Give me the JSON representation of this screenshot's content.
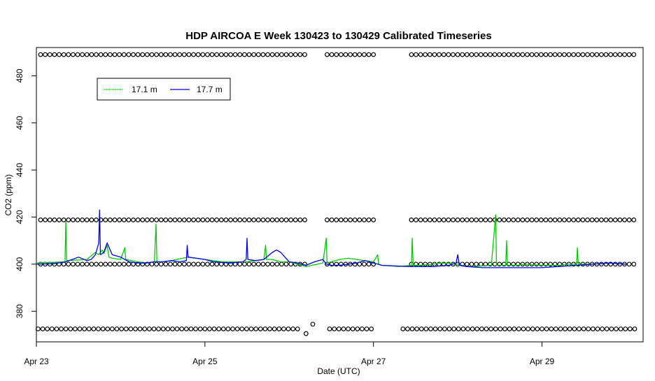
{
  "chart_data": {
    "type": "line",
    "title": "HDP AIRCOA E  Week 130423 to 130429  Calibrated Timeseries",
    "xlabel": "Date (UTC)",
    "ylabel": "CO2 (ppm)",
    "x_unit": "days (April 2013)",
    "xlim": [
      23.0,
      30.2
    ],
    "ylim": [
      367.0,
      492.0
    ],
    "x_ticks": [
      {
        "value": 23,
        "label": "Apr 23"
      },
      {
        "value": 25,
        "label": "Apr 25"
      },
      {
        "value": 27,
        "label": "Apr 27"
      },
      {
        "value": 29,
        "label": "Apr 29"
      }
    ],
    "y_ticks": [
      {
        "value": 380,
        "label": "380"
      },
      {
        "value": 400,
        "label": "400"
      },
      {
        "value": 420,
        "label": "420"
      },
      {
        "value": 440,
        "label": "440"
      },
      {
        "value": 460,
        "label": "460"
      },
      {
        "value": 480,
        "label": "480"
      }
    ],
    "legend": {
      "position": "top-left",
      "entries": [
        {
          "label": "17.1 m",
          "color": "#00cc00"
        },
        {
          "label": "17.7 m",
          "color": "#0000ee"
        }
      ]
    },
    "series": [
      {
        "name": "17.1 m",
        "color": "#00cc00",
        "x": [
          23.0,
          23.34,
          23.35,
          23.36,
          23.6,
          23.7,
          23.74,
          23.78,
          23.8,
          23.84,
          23.86,
          23.9,
          24.0,
          24.05,
          24.06,
          24.2,
          24.3,
          24.4,
          24.42,
          24.43,
          24.5,
          24.6,
          24.8,
          25.0,
          25.2,
          25.5,
          25.6,
          25.7,
          25.72,
          25.73,
          25.8,
          25.9,
          26.0,
          26.2,
          26.4,
          26.44,
          26.45,
          26.5,
          26.6,
          26.7,
          26.8,
          27.0,
          27.05,
          27.06,
          27.1,
          27.3,
          27.45,
          27.46,
          27.47,
          27.55,
          27.7,
          27.8,
          28.0,
          28.1,
          28.2,
          28.4,
          28.45,
          28.46,
          28.47,
          28.5,
          28.57,
          28.58,
          28.59,
          28.7,
          28.8,
          29.0,
          29.2,
          29.3,
          29.41,
          29.42,
          29.43,
          29.6,
          29.8,
          30.0
        ],
        "y": [
          400.5,
          401.0,
          418.0,
          401.5,
          402.0,
          405.0,
          404.0,
          406.0,
          404.5,
          408.0,
          403.0,
          402.5,
          402.0,
          407.0,
          402.0,
          401.0,
          400.5,
          401.0,
          417.0,
          401.0,
          401.0,
          401.5,
          403.0,
          402.0,
          401.0,
          401.0,
          401.5,
          402.0,
          408.0,
          402.0,
          402.0,
          401.0,
          401.0,
          399.0,
          400.5,
          411.0,
          400.5,
          401.0,
          402.0,
          402.5,
          402.0,
          401.0,
          404.0,
          400.0,
          399.5,
          399.0,
          399.5,
          411.0,
          399.5,
          399.5,
          400.0,
          400.5,
          400.0,
          399.0,
          399.0,
          399.5,
          421.0,
          399.5,
          399.5,
          399.5,
          399.5,
          410.0,
          399.5,
          399.5,
          400.0,
          399.5,
          399.5,
          400.0,
          400.0,
          407.0,
          400.0,
          400.0,
          400.5,
          400.0
        ]
      },
      {
        "name": "17.7 m",
        "color": "#0000ee",
        "x": [
          23.0,
          23.2,
          23.35,
          23.5,
          23.6,
          23.65,
          23.7,
          23.74,
          23.75,
          23.76,
          23.8,
          23.84,
          23.9,
          24.0,
          24.1,
          24.2,
          24.3,
          24.4,
          24.5,
          24.6,
          24.7,
          24.78,
          24.79,
          24.8,
          24.9,
          25.0,
          25.1,
          25.3,
          25.45,
          25.49,
          25.5,
          25.51,
          25.6,
          25.7,
          25.8,
          25.85,
          25.9,
          25.95,
          26.0,
          26.1,
          26.2,
          26.3,
          26.4,
          26.44,
          26.5,
          26.6,
          26.8,
          26.9,
          27.0,
          27.1,
          27.4,
          27.7,
          27.9,
          27.98,
          28.0,
          28.02,
          28.1,
          28.3,
          28.5,
          28.7,
          28.8,
          29.0,
          29.2,
          29.4,
          29.6,
          29.8,
          30.0
        ],
        "y": [
          400.0,
          400.2,
          401.0,
          403.0,
          401.5,
          402.0,
          404.0,
          409.0,
          423.0,
          404.0,
          405.0,
          409.0,
          404.0,
          403.0,
          401.0,
          400.5,
          400.5,
          401.0,
          401.0,
          401.5,
          401.0,
          401.5,
          408.0,
          403.0,
          402.5,
          402.0,
          401.0,
          400.5,
          401.0,
          402.0,
          411.0,
          402.0,
          401.5,
          402.0,
          405.0,
          406.0,
          405.0,
          403.0,
          401.0,
          400.5,
          399.5,
          401.0,
          402.0,
          400.0,
          399.5,
          399.5,
          400.5,
          401.5,
          400.5,
          399.5,
          399.0,
          399.0,
          399.5,
          400.5,
          404.0,
          399.5,
          399.0,
          398.5,
          398.5,
          398.5,
          398.5,
          398.5,
          399.0,
          399.5,
          400.0,
          400.5,
          400.0
        ]
      }
    ],
    "calibration_points": {
      "marker": "open circle",
      "groups": [
        {
          "y": 489.0,
          "x_ranges": [
            [
              23.05,
              26.2
            ],
            [
              26.45,
              27.0
            ],
            [
              27.45,
              30.1
            ]
          ]
        },
        {
          "y": 418.8,
          "x_ranges": [
            [
              23.05,
              26.2
            ],
            [
              26.45,
              27.0
            ],
            [
              27.45,
              30.1
            ]
          ]
        },
        {
          "y": 400.0,
          "x_ranges": [
            [
              23.05,
              26.2
            ],
            [
              26.45,
              27.0
            ],
            [
              27.45,
              30.1
            ]
          ]
        },
        {
          "y": 372.5,
          "x_ranges": [
            [
              23.02,
              26.15
            ],
            [
              26.48,
              27.0
            ],
            [
              27.35,
              30.1
            ]
          ]
        }
      ],
      "outliers": [
        {
          "x": 26.28,
          "y": 374.5
        },
        {
          "x": 26.2,
          "y": 370.5
        }
      ]
    }
  }
}
